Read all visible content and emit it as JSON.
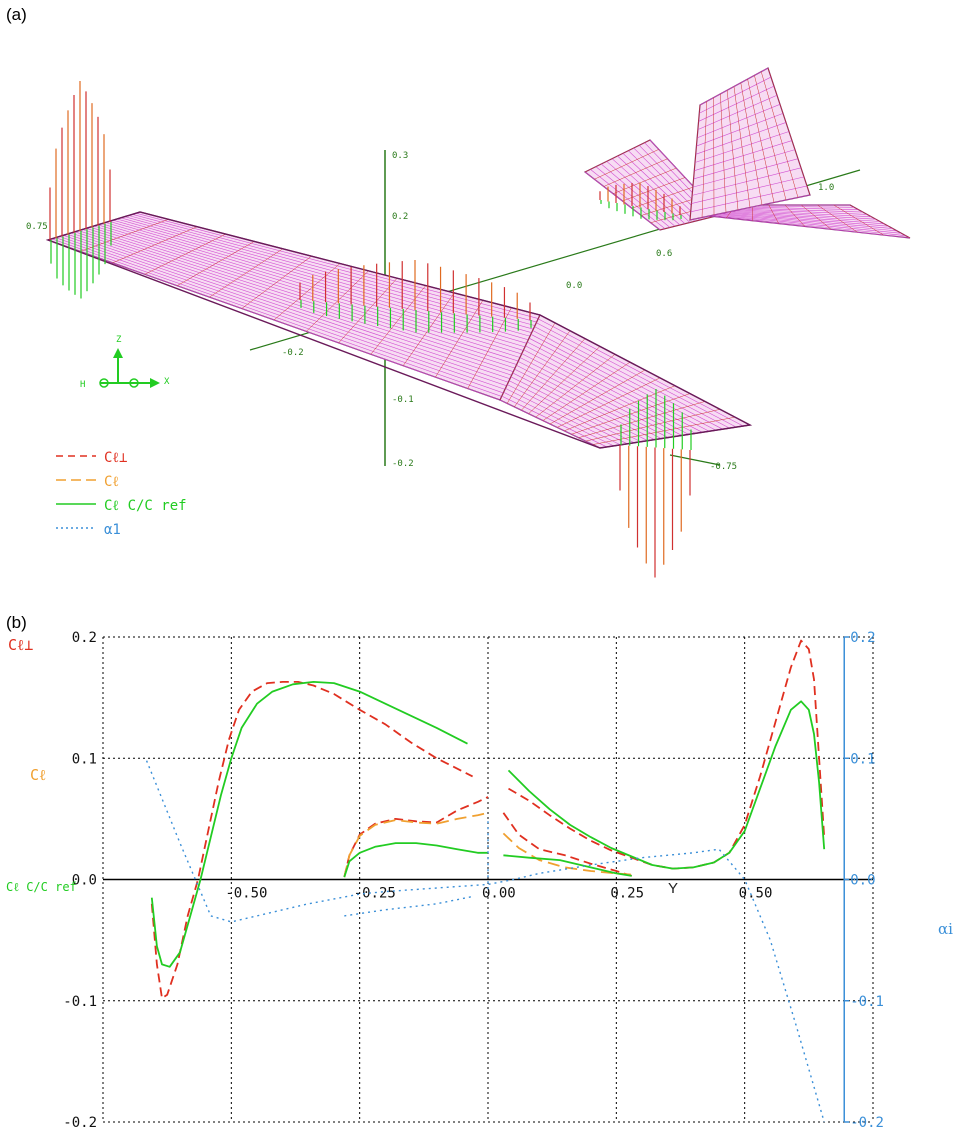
{
  "panel_a": {
    "label": "(a)",
    "axis_ticks": {
      "z": [
        "0.3",
        "0.2",
        "-0.1",
        "-0.2"
      ],
      "y": [
        "0.75",
        "0.0",
        "0.6",
        "1.0",
        "-0.2",
        "-0.75"
      ]
    },
    "triad": {
      "z": "Z",
      "y": "H",
      "x": "X"
    },
    "legend": [
      {
        "text": "Cℓ⊥",
        "color": "#e03020",
        "dash": "7 5"
      },
      {
        "text": "Cℓ",
        "color": "#f0a030",
        "dash": "10 5"
      },
      {
        "text": "Cℓ C/C ref",
        "color": "#22cc22",
        "dash": ""
      },
      {
        "text": "α1",
        "color": "#3a8fd8",
        "dash": "2 3"
      }
    ]
  },
  "panel_b": {
    "label": "(b)",
    "ylabels": [
      {
        "text": "Cℓ⊥",
        "color": "#e03020"
      },
      {
        "text": "Cℓ",
        "color": "#f0a030"
      },
      {
        "text": "Cℓ C/C ref",
        "color": "#22cc22"
      }
    ],
    "xlabel": "Y",
    "right_label": "αi",
    "colors": {
      "cl_perp": "#e03020",
      "cl": "#f0a030",
      "cl_c": "#22cc22",
      "alpha": "#3a8fd8"
    }
  },
  "chart_data": {
    "type": "line",
    "xlabel": "Y",
    "ylabel": "Cℓ⊥ / Cℓ / Cℓ C/C ref",
    "y2label": "αi",
    "xlim": [
      -0.75,
      0.75
    ],
    "ylim": [
      -0.2,
      0.2
    ],
    "y2lim": [
      -0.2,
      0.2
    ],
    "xticks": [
      "-0.50",
      "-0.25",
      "0.00",
      "0.25",
      "0.50"
    ],
    "xtick_values": [
      -0.5,
      -0.25,
      0.0,
      0.25,
      0.5
    ],
    "yticks": [
      "-0.2",
      "-0.1",
      "0.0",
      "0.1",
      "0.2"
    ],
    "ytick_values": [
      -0.2,
      -0.1,
      0.0,
      0.1,
      0.2
    ],
    "y2ticks": [
      "-0.2",
      "-0.1",
      "0.0",
      "0.1",
      "0.2"
    ],
    "y2tick_values": [
      -0.2,
      -0.1,
      0.0,
      0.1,
      0.2
    ],
    "grid": true,
    "series": [
      {
        "name": "Cℓ⊥",
        "style": "dashed",
        "segments": [
          [
            [
              -0.655,
              -0.02
            ],
            [
              -0.645,
              -0.07
            ],
            [
              -0.635,
              -0.098
            ],
            [
              -0.625,
              -0.095
            ],
            [
              -0.605,
              -0.07
            ],
            [
              -0.585,
              -0.03
            ],
            [
              -0.565,
              0.0
            ],
            [
              -0.545,
              0.04
            ],
            [
              -0.525,
              0.08
            ],
            [
              -0.505,
              0.115
            ],
            [
              -0.485,
              0.14
            ],
            [
              -0.46,
              0.155
            ],
            [
              -0.43,
              0.162
            ],
            [
              -0.4,
              0.163
            ],
            [
              -0.37,
              0.163
            ],
            [
              -0.34,
              0.16
            ],
            [
              -0.3,
              0.153
            ],
            [
              -0.25,
              0.14
            ],
            [
              -0.2,
              0.128
            ],
            [
              -0.15,
              0.113
            ],
            [
              -0.1,
              0.1
            ],
            [
              -0.03,
              0.085
            ]
          ],
          [
            [
              -0.28,
              0.002
            ],
            [
              -0.27,
              0.02
            ],
            [
              -0.25,
              0.037
            ],
            [
              -0.22,
              0.046
            ],
            [
              -0.18,
              0.05
            ],
            [
              -0.14,
              0.048
            ],
            [
              -0.1,
              0.047
            ],
            [
              -0.06,
              0.057
            ],
            [
              -0.02,
              0.064
            ],
            [
              0.0,
              0.068
            ]
          ],
          [
            [
              0.04,
              0.075
            ],
            [
              0.08,
              0.065
            ],
            [
              0.12,
              0.053
            ],
            [
              0.16,
              0.042
            ],
            [
              0.2,
              0.032
            ],
            [
              0.24,
              0.024
            ],
            [
              0.28,
              0.018
            ],
            [
              0.32,
              0.012
            ],
            [
              0.36,
              0.009
            ],
            [
              0.4,
              0.01
            ],
            [
              0.44,
              0.014
            ],
            [
              0.47,
              0.022
            ],
            [
              0.5,
              0.045
            ],
            [
              0.53,
              0.085
            ],
            [
              0.56,
              0.13
            ],
            [
              0.59,
              0.175
            ],
            [
              0.61,
              0.197
            ],
            [
              0.625,
              0.19
            ],
            [
              0.635,
              0.165
            ],
            [
              0.645,
              0.1
            ],
            [
              0.655,
              0.035
            ]
          ],
          [
            [
              0.03,
              0.055
            ],
            [
              0.06,
              0.037
            ],
            [
              0.1,
              0.025
            ],
            [
              0.15,
              0.02
            ],
            [
              0.2,
              0.013
            ],
            [
              0.25,
              0.007
            ],
            [
              0.28,
              0.003
            ]
          ]
        ]
      },
      {
        "name": "Cℓ",
        "style": "dashed",
        "segments": [
          [
            [
              -0.28,
              0.002
            ],
            [
              -0.27,
              0.02
            ],
            [
              -0.25,
              0.036
            ],
            [
              -0.22,
              0.045
            ],
            [
              -0.18,
              0.049
            ],
            [
              -0.14,
              0.047
            ],
            [
              -0.1,
              0.046
            ],
            [
              -0.06,
              0.05
            ],
            [
              -0.02,
              0.053
            ],
            [
              0.0,
              0.055
            ]
          ],
          [
            [
              0.03,
              0.038
            ],
            [
              0.06,
              0.026
            ],
            [
              0.1,
              0.016
            ],
            [
              0.15,
              0.01
            ],
            [
              0.2,
              0.007
            ],
            [
              0.25,
              0.005
            ],
            [
              0.28,
              0.004
            ]
          ]
        ]
      },
      {
        "name": "Cℓ C/C ref",
        "style": "solid",
        "segments": [
          [
            [
              -0.655,
              -0.015
            ],
            [
              -0.645,
              -0.055
            ],
            [
              -0.635,
              -0.07
            ],
            [
              -0.62,
              -0.072
            ],
            [
              -0.6,
              -0.06
            ],
            [
              -0.58,
              -0.03
            ],
            [
              -0.56,
              0.0
            ],
            [
              -0.54,
              0.035
            ],
            [
              -0.52,
              0.07
            ],
            [
              -0.5,
              0.1
            ],
            [
              -0.48,
              0.125
            ],
            [
              -0.45,
              0.145
            ],
            [
              -0.42,
              0.155
            ],
            [
              -0.38,
              0.161
            ],
            [
              -0.34,
              0.163
            ],
            [
              -0.3,
              0.162
            ],
            [
              -0.25,
              0.155
            ],
            [
              -0.2,
              0.145
            ],
            [
              -0.15,
              0.135
            ],
            [
              -0.1,
              0.125
            ],
            [
              -0.04,
              0.112
            ]
          ],
          [
            [
              -0.28,
              0.002
            ],
            [
              -0.27,
              0.015
            ],
            [
              -0.25,
              0.022
            ],
            [
              -0.22,
              0.027
            ],
            [
              -0.18,
              0.03
            ],
            [
              -0.14,
              0.03
            ],
            [
              -0.1,
              0.028
            ],
            [
              -0.06,
              0.025
            ],
            [
              -0.02,
              0.022
            ],
            [
              0.0,
              0.022
            ]
          ],
          [
            [
              0.04,
              0.09
            ],
            [
              0.08,
              0.073
            ],
            [
              0.12,
              0.058
            ],
            [
              0.16,
              0.045
            ],
            [
              0.2,
              0.035
            ],
            [
              0.24,
              0.026
            ],
            [
              0.28,
              0.019
            ],
            [
              0.32,
              0.012
            ],
            [
              0.36,
              0.009
            ],
            [
              0.4,
              0.01
            ],
            [
              0.44,
              0.014
            ],
            [
              0.47,
              0.022
            ],
            [
              0.5,
              0.04
            ],
            [
              0.53,
              0.075
            ],
            [
              0.56,
              0.11
            ],
            [
              0.59,
              0.14
            ],
            [
              0.61,
              0.147
            ],
            [
              0.625,
              0.14
            ],
            [
              0.635,
              0.12
            ],
            [
              0.645,
              0.08
            ],
            [
              0.655,
              0.025
            ]
          ],
          [
            [
              0.03,
              0.02
            ],
            [
              0.08,
              0.018
            ],
            [
              0.14,
              0.016
            ],
            [
              0.2,
              0.01
            ],
            [
              0.25,
              0.005
            ],
            [
              0.28,
              0.003
            ]
          ]
        ]
      },
      {
        "name": "α1",
        "style": "dotted",
        "axis": "right",
        "segments": [
          [
            [
              -0.665,
              0.098
            ],
            [
              -0.6,
              0.03
            ],
            [
              -0.54,
              -0.03
            ],
            [
              -0.5,
              -0.035
            ],
            [
              -0.45,
              -0.03
            ],
            [
              -0.4,
              -0.025
            ],
            [
              -0.35,
              -0.02
            ],
            [
              -0.3,
              -0.016
            ],
            [
              -0.25,
              -0.012
            ],
            [
              -0.2,
              -0.01
            ],
            [
              -0.1,
              -0.007
            ],
            [
              0.0,
              -0.004
            ],
            [
              0.05,
              0.0
            ],
            [
              0.1,
              0.005
            ],
            [
              0.2,
              0.012
            ],
            [
              0.3,
              0.018
            ],
            [
              0.4,
              0.022
            ],
            [
              0.45,
              0.025
            ],
            [
              0.5,
              0.0
            ],
            [
              0.55,
              -0.05
            ],
            [
              0.6,
              -0.12
            ],
            [
              0.655,
              -0.2
            ]
          ],
          [
            [
              -0.28,
              -0.03
            ],
            [
              -0.2,
              -0.025
            ],
            [
              -0.1,
              -0.02
            ],
            [
              -0.03,
              -0.014
            ]
          ],
          [
            [
              0.0,
              -0.008
            ],
            [
              0.0,
              0.05
            ]
          ]
        ]
      }
    ]
  }
}
